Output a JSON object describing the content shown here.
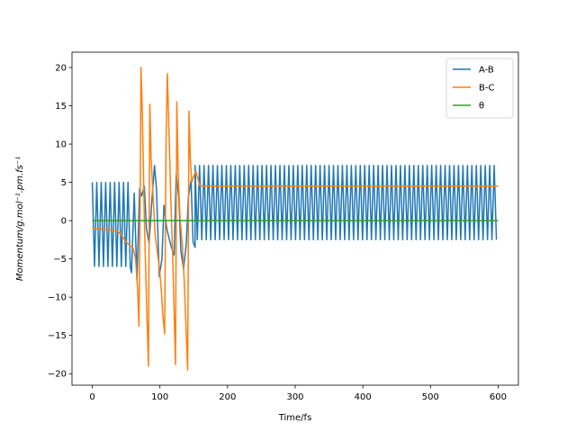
{
  "chart_data": {
    "type": "line",
    "title": "",
    "xlabel": "Time/fs",
    "ylabel": "Momentum/g.mol⁻¹.pm.fs⁻¹",
    "xlim": [
      -30,
      630
    ],
    "ylim": [
      -21.5,
      22
    ],
    "x_ticks": [
      0,
      100,
      200,
      300,
      400,
      500,
      600
    ],
    "y_ticks": [
      -20,
      -15,
      -10,
      -5,
      0,
      5,
      10,
      15,
      20
    ],
    "grid": false,
    "legend_position": "top-right",
    "x_range": [
      0,
      600
    ],
    "series": [
      {
        "name": "A-B",
        "color": "#1f77b4",
        "segments": [
          {
            "x_start": 0,
            "x_end": 58,
            "period": 6.6,
            "max": 5.0,
            "min": -6.0
          },
          {
            "x_start": 58,
            "x_end": 150,
            "points": [
              [
                58,
                -6.8
              ],
              [
                62,
                3.6
              ],
              [
                66,
                -7.8
              ],
              [
                70,
                4.2
              ],
              [
                73,
                3.2
              ],
              [
                77,
                4.5
              ],
              [
                80,
                -1.0
              ],
              [
                84,
                -3.0
              ],
              [
                88,
                2.5
              ],
              [
                92,
                7.2
              ],
              [
                95,
                4.0
              ],
              [
                99,
                -7.3
              ],
              [
                103,
                -5.0
              ],
              [
                106,
                2.0
              ],
              [
                110,
                -1.0
              ],
              [
                114,
                -2.5
              ],
              [
                118,
                -3.8
              ],
              [
                121,
                -4.5
              ],
              [
                124,
                6.0
              ],
              [
                128,
                3.0
              ],
              [
                131,
                -4.0
              ],
              [
                135,
                -6.3
              ],
              [
                139,
                -3.0
              ],
              [
                142,
                3.0
              ],
              [
                146,
                5.2
              ],
              [
                149,
                -2.8
              ],
              [
                152,
                -3.5
              ]
            ]
          },
          {
            "x_start": 152,
            "x_end": 600,
            "period": 6.6,
            "max": 7.2,
            "min": -2.5
          }
        ]
      },
      {
        "name": "B-C",
        "color": "#ff7f0e",
        "points": [
          [
            0,
            -1.0
          ],
          [
            10,
            -1.1
          ],
          [
            20,
            -1.1
          ],
          [
            30,
            -1.2
          ],
          [
            38,
            -1.4
          ],
          [
            44,
            -2.0
          ],
          [
            50,
            -2.8
          ],
          [
            55,
            -3.2
          ],
          [
            60,
            -3.5
          ],
          [
            64,
            -5.0
          ],
          [
            67,
            -9.0
          ],
          [
            69,
            -13.8
          ],
          [
            71,
            5.0
          ],
          [
            72,
            20.0
          ],
          [
            74,
            14.0
          ],
          [
            77,
            0.0
          ],
          [
            80,
            -10.0
          ],
          [
            83,
            -19.0
          ],
          [
            85,
            15.2
          ],
          [
            87,
            8.0
          ],
          [
            90,
            3.0
          ],
          [
            93,
            -2.0
          ],
          [
            96,
            -4.0
          ],
          [
            99,
            -6.0
          ],
          [
            102,
            -9.0
          ],
          [
            104,
            -12.0
          ],
          [
            107,
            -14.8
          ],
          [
            109,
            10.0
          ],
          [
            111,
            19.2
          ],
          [
            113,
            13.0
          ],
          [
            116,
            3.0
          ],
          [
            119,
            -5.0
          ],
          [
            121,
            -12.0
          ],
          [
            123,
            -18.8
          ],
          [
            125,
            15.5
          ],
          [
            127,
            6.0
          ],
          [
            130,
            0.0
          ],
          [
            133,
            -3.0
          ],
          [
            136,
            -8.0
          ],
          [
            139,
            -15.0
          ],
          [
            141,
            -19.5
          ],
          [
            143,
            14.3
          ],
          [
            145,
            8.0
          ],
          [
            147,
            5.0
          ],
          [
            150,
            5.8
          ],
          [
            153,
            6.5
          ],
          [
            156,
            5.5
          ],
          [
            159,
            4.6
          ],
          [
            165,
            4.5
          ],
          [
            180,
            4.5
          ],
          [
            250,
            4.5
          ],
          [
            350,
            4.5
          ],
          [
            450,
            4.5
          ],
          [
            550,
            4.5
          ],
          [
            600,
            4.5
          ]
        ]
      },
      {
        "name": "θ",
        "color": "#2ca02c",
        "points": [
          [
            0,
            0
          ],
          [
            600,
            0
          ]
        ]
      }
    ]
  }
}
